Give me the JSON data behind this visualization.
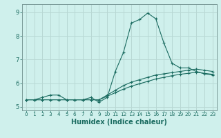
{
  "xlabel": "Humidex (Indice chaleur)",
  "ylabel": "",
  "bg_color": "#cff0ec",
  "grid_color": "#b8d8d4",
  "line_color": "#1a6b60",
  "xlim": [
    -0.5,
    23.5
  ],
  "ylim": [
    4.85,
    9.35
  ],
  "xticks": [
    0,
    1,
    2,
    3,
    4,
    5,
    6,
    7,
    8,
    9,
    10,
    11,
    12,
    13,
    14,
    15,
    16,
    17,
    18,
    19,
    20,
    21,
    22,
    23
  ],
  "yticks": [
    5,
    6,
    7,
    8,
    9
  ],
  "series1_x": [
    0,
    1,
    2,
    3,
    4,
    5,
    6,
    7,
    8,
    9,
    10,
    11,
    12,
    13,
    14,
    15,
    16,
    17,
    18,
    19,
    20,
    21,
    22,
    23
  ],
  "series1_y": [
    5.3,
    5.3,
    5.4,
    5.5,
    5.5,
    5.3,
    5.3,
    5.3,
    5.4,
    5.2,
    5.4,
    6.5,
    7.3,
    8.55,
    8.7,
    8.97,
    8.73,
    7.7,
    6.85,
    6.65,
    6.65,
    6.5,
    6.4,
    6.35
  ],
  "series2_x": [
    0,
    1,
    2,
    3,
    4,
    5,
    6,
    7,
    8,
    9,
    10,
    11,
    12,
    13,
    14,
    15,
    16,
    17,
    18,
    19,
    20,
    21,
    22,
    23
  ],
  "series2_y": [
    5.3,
    5.3,
    5.3,
    5.3,
    5.3,
    5.3,
    5.3,
    5.3,
    5.3,
    5.3,
    5.5,
    5.7,
    5.9,
    6.05,
    6.15,
    6.25,
    6.35,
    6.4,
    6.45,
    6.5,
    6.55,
    6.6,
    6.55,
    6.5
  ],
  "series3_x": [
    0,
    1,
    2,
    3,
    4,
    5,
    6,
    7,
    8,
    9,
    10,
    11,
    12,
    13,
    14,
    15,
    16,
    17,
    18,
    19,
    20,
    21,
    22,
    23
  ],
  "series3_y": [
    5.3,
    5.3,
    5.3,
    5.3,
    5.3,
    5.3,
    5.3,
    5.3,
    5.3,
    5.3,
    5.45,
    5.6,
    5.75,
    5.88,
    5.98,
    6.08,
    6.18,
    6.25,
    6.32,
    6.38,
    6.42,
    6.47,
    6.42,
    6.38
  ]
}
